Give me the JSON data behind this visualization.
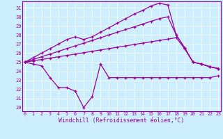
{
  "bg_color": "#cceeff",
  "line_color": "#990099",
  "xlabel": "Windchill (Refroidissement éolien,°C)",
  "x_ticks": [
    0,
    1,
    2,
    3,
    4,
    5,
    6,
    7,
    8,
    9,
    10,
    11,
    12,
    13,
    14,
    15,
    16,
    17,
    18,
    19,
    20,
    21,
    22,
    23
  ],
  "y_ticks": [
    20,
    21,
    22,
    23,
    24,
    25,
    26,
    27,
    28,
    29,
    30,
    31
  ],
  "xlim": [
    -0.3,
    23.3
  ],
  "ylim": [
    19.6,
    31.7
  ],
  "series": [
    {
      "x": [
        0,
        1,
        2,
        3,
        4,
        5,
        6,
        7,
        8,
        9,
        10,
        11,
        12,
        13,
        14,
        15,
        16,
        17,
        18,
        19,
        20,
        21,
        22,
        23
      ],
      "y": [
        25.0,
        24.8,
        24.6,
        23.3,
        22.2,
        22.2,
        21.8,
        20.0,
        21.2,
        24.8,
        23.3,
        23.3,
        23.3,
        23.3,
        23.3,
        23.3,
        23.3,
        23.3,
        23.3,
        23.3,
        23.3,
        23.3,
        23.3,
        23.5
      ]
    },
    {
      "x": [
        0,
        1,
        2,
        3,
        4,
        5,
        6,
        7,
        8,
        9,
        10,
        11,
        12,
        13,
        14,
        15,
        16,
        17,
        18,
        19,
        20,
        21,
        22,
        23
      ],
      "y": [
        25.0,
        25.15,
        25.3,
        25.45,
        25.6,
        25.75,
        25.9,
        26.05,
        26.2,
        26.35,
        26.5,
        26.65,
        26.8,
        26.95,
        27.1,
        27.25,
        27.4,
        27.55,
        27.7,
        26.5,
        25.0,
        24.8,
        24.5,
        24.3
      ]
    },
    {
      "x": [
        0,
        1,
        2,
        3,
        4,
        5,
        6,
        7,
        8,
        9,
        10,
        11,
        12,
        13,
        14,
        15,
        16,
        17,
        18,
        19,
        20,
        21,
        22,
        23
      ],
      "y": [
        25.0,
        25.3,
        25.6,
        25.9,
        26.2,
        26.5,
        26.8,
        27.1,
        27.4,
        27.7,
        28.0,
        28.3,
        28.6,
        28.9,
        29.2,
        29.5,
        29.8,
        30.0,
        28.0,
        26.6,
        25.0,
        24.8,
        24.5,
        24.3
      ]
    },
    {
      "x": [
        0,
        1,
        2,
        3,
        4,
        5,
        6,
        7,
        8,
        9,
        10,
        11,
        12,
        13,
        14,
        15,
        16,
        17,
        18,
        19,
        20,
        21,
        22,
        23
      ],
      "y": [
        25.0,
        25.5,
        26.0,
        26.5,
        27.0,
        27.5,
        27.8,
        27.5,
        27.8,
        28.3,
        28.8,
        29.3,
        29.8,
        30.3,
        30.7,
        31.2,
        31.5,
        31.3,
        28.0,
        26.6,
        25.0,
        24.8,
        24.5,
        24.3
      ]
    }
  ]
}
